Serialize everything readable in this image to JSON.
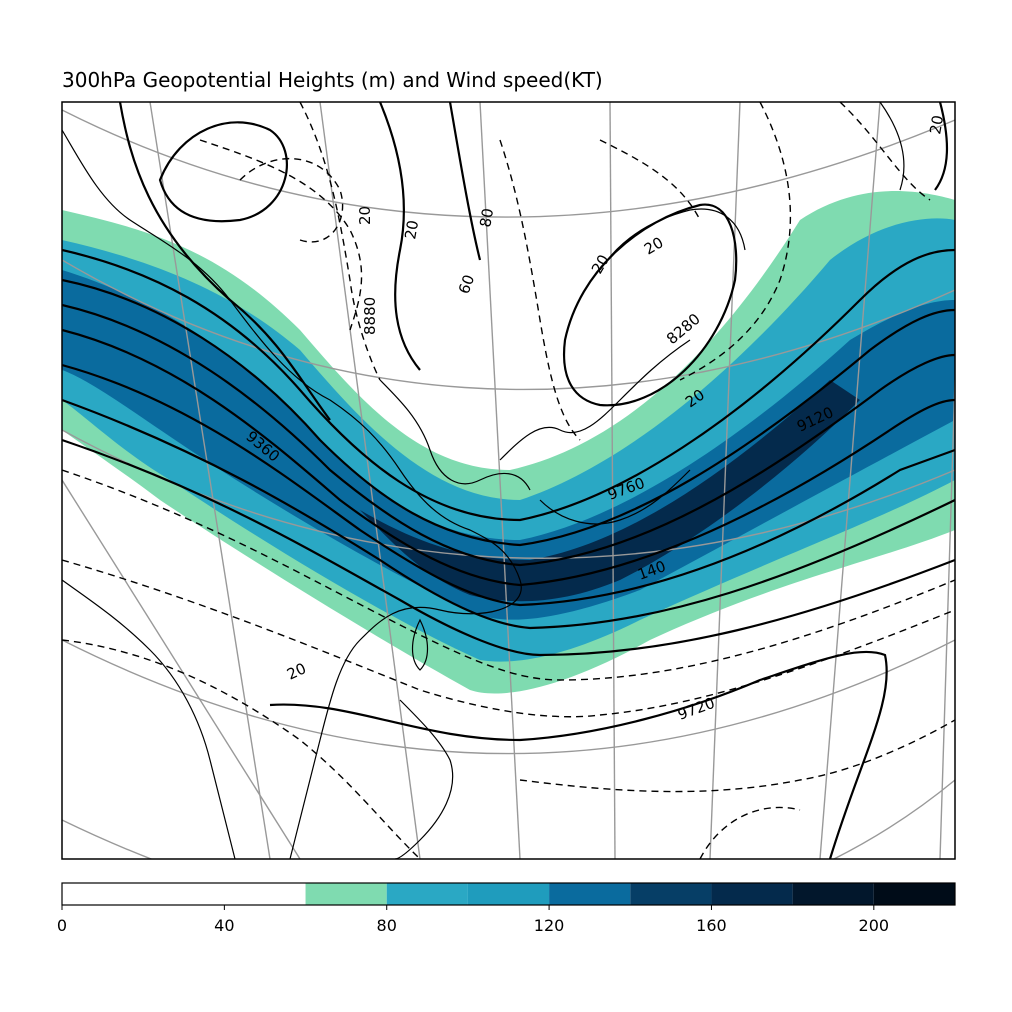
{
  "title": "300hPa Geopotential Heights (m) and Wind speed(KT)",
  "colorbar": {
    "range": [
      0,
      220
    ],
    "ticks": [
      "0",
      "40",
      "80",
      "120",
      "160",
      "200"
    ],
    "bins": [
      {
        "from": 0,
        "to": 60,
        "color": "#ffffff"
      },
      {
        "from": 60,
        "to": 80,
        "color": "#7fdbb0"
      },
      {
        "from": 80,
        "to": 100,
        "color": "#2aa8c4"
      },
      {
        "from": 100,
        "to": 120,
        "color": "#1f9cbd"
      },
      {
        "from": 120,
        "to": 140,
        "color": "#0a6b9e"
      },
      {
        "from": 140,
        "to": 160,
        "color": "#063e66"
      },
      {
        "from": 160,
        "to": 180,
        "color": "#042a4c"
      },
      {
        "from": 180,
        "to": 200,
        "color": "#02172c"
      },
      {
        "from": 200,
        "to": 220,
        "color": "#000c18"
      }
    ]
  },
  "height_labels": [
    "9360",
    "9120",
    "9720",
    "8280",
    "8880",
    "9760"
  ],
  "isotach_labels": [
    "20",
    "20",
    "20",
    "20",
    "20",
    "60",
    "80",
    "140",
    "20",
    "20"
  ]
}
